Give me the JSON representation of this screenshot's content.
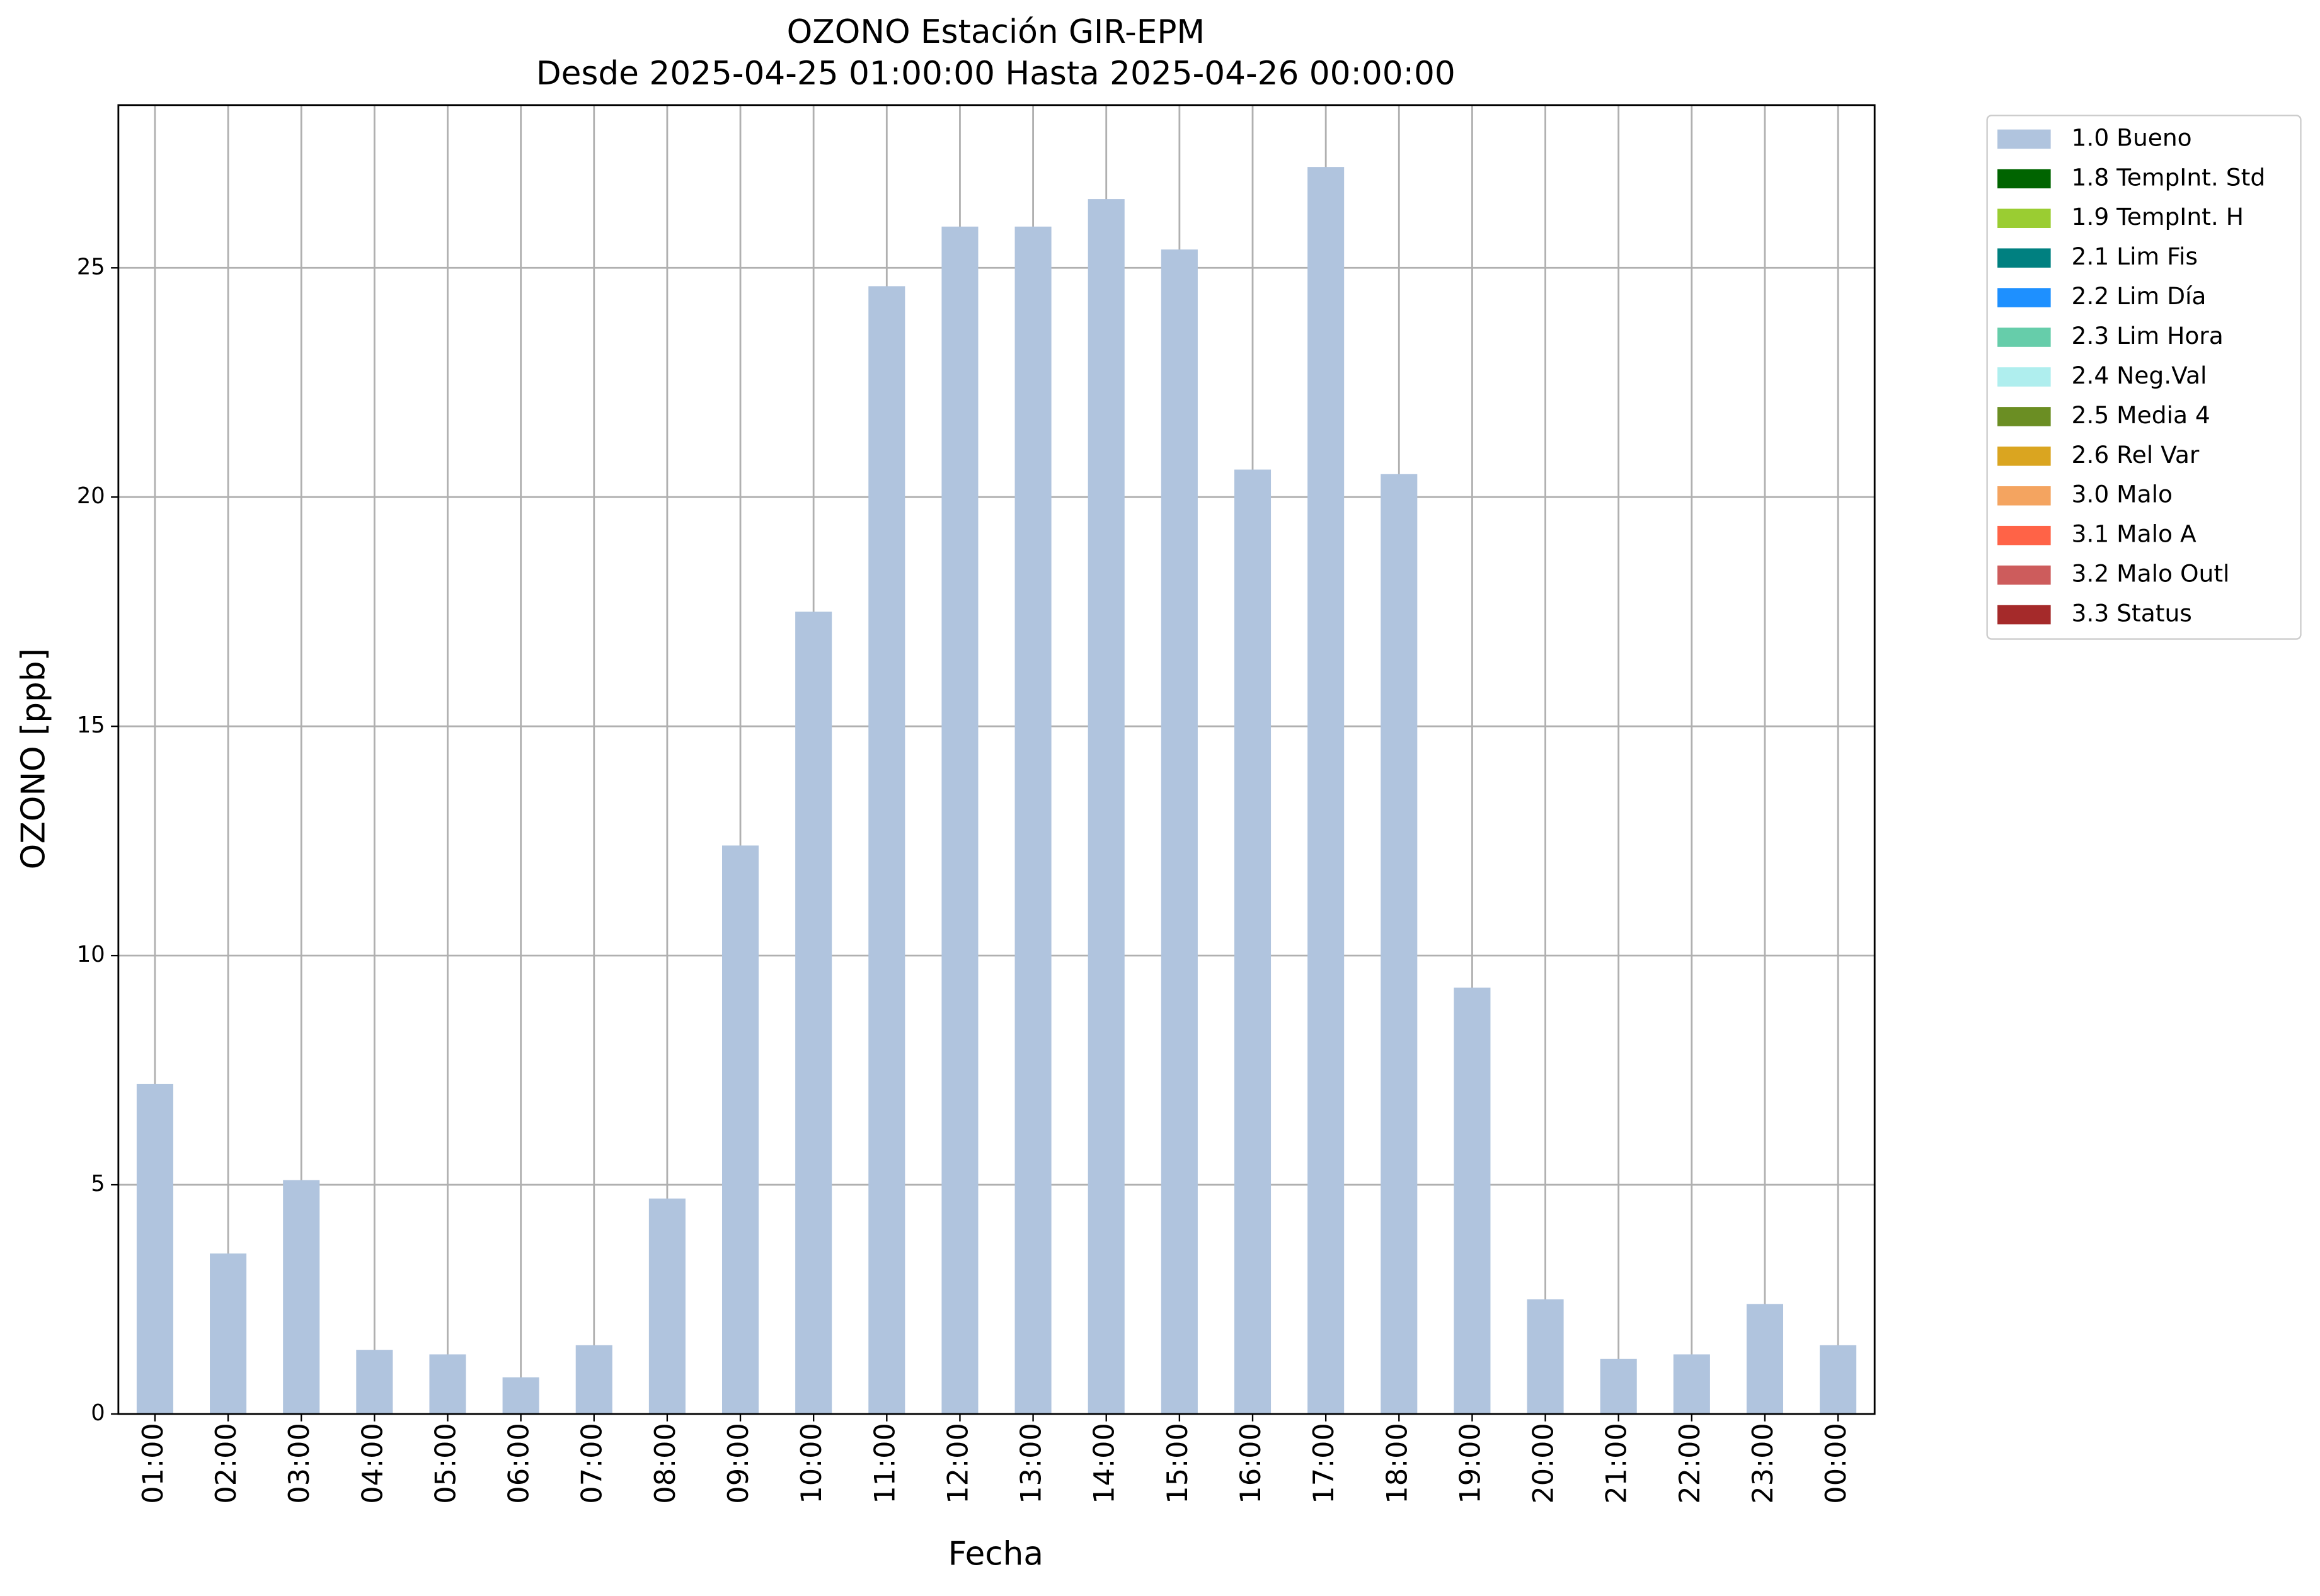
{
  "chart_data": {
    "type": "bar",
    "stacked": true,
    "title": "OZONO Estación GIR-EPM",
    "subtitle": "Desde 2025-04-25 01:00:00 Hasta 2025-04-26 00:00:00",
    "x_label": "Fecha",
    "y_label": "OZONO [ppb]",
    "categories": [
      "01:00",
      "02:00",
      "03:00",
      "04:00",
      "05:00",
      "06:00",
      "07:00",
      "08:00",
      "09:00",
      "10:00",
      "11:00",
      "12:00",
      "13:00",
      "14:00",
      "15:00",
      "16:00",
      "17:00",
      "18:00",
      "19:00",
      "20:00",
      "21:00",
      "22:00",
      "23:00",
      "00:00"
    ],
    "series": [
      {
        "name": "1.0 Bueno",
        "color": "#b0c4de",
        "values": [
          7.2,
          3.5,
          5.1,
          1.4,
          1.3,
          0.8,
          1.5,
          4.7,
          12.4,
          17.5,
          24.6,
          25.9,
          25.9,
          26.5,
          25.4,
          20.6,
          27.2,
          20.5,
          9.3,
          2.5,
          1.2,
          1.3,
          2.4,
          1.5
        ]
      },
      {
        "name": "1.8 TempInt. Std",
        "color": "#006400",
        "values": [
          0,
          0,
          0,
          0,
          0,
          0,
          0,
          0,
          0,
          0,
          0,
          0,
          0,
          0,
          0,
          0,
          0,
          0,
          0,
          0,
          0,
          0,
          0,
          0
        ]
      },
      {
        "name": "1.9 TempInt. H",
        "color": "#9acd32",
        "values": [
          0,
          0,
          0,
          0,
          0,
          0,
          0,
          0,
          0,
          0,
          0,
          0,
          0,
          0,
          0,
          0,
          0,
          0,
          0,
          0,
          0,
          0,
          0,
          0
        ]
      },
      {
        "name": "2.1 Lim Fis",
        "color": "#008080",
        "values": [
          0,
          0,
          0,
          0,
          0,
          0,
          0,
          0,
          0,
          0,
          0,
          0,
          0,
          0,
          0,
          0,
          0,
          0,
          0,
          0,
          0,
          0,
          0,
          0
        ]
      },
      {
        "name": "2.2 Lim Día",
        "color": "#1e90ff",
        "values": [
          0,
          0,
          0,
          0,
          0,
          0,
          0,
          0,
          0,
          0,
          0,
          0,
          0,
          0,
          0,
          0,
          0,
          0,
          0,
          0,
          0,
          0,
          0,
          0
        ]
      },
      {
        "name": "2.3 Lim Hora",
        "color": "#66cdaa",
        "values": [
          0,
          0,
          0,
          0,
          0,
          0,
          0,
          0,
          0,
          0,
          0,
          0,
          0,
          0,
          0,
          0,
          0,
          0,
          0,
          0,
          0,
          0,
          0,
          0
        ]
      },
      {
        "name": "2.4 Neg.Val",
        "color": "#afeeee",
        "values": [
          0,
          0,
          0,
          0,
          0,
          0,
          0,
          0,
          0,
          0,
          0,
          0,
          0,
          0,
          0,
          0,
          0,
          0,
          0,
          0,
          0,
          0,
          0,
          0
        ]
      },
      {
        "name": "2.5 Media 4",
        "color": "#6b8e23",
        "values": [
          0,
          0,
          0,
          0,
          0,
          0,
          0,
          0,
          0,
          0,
          0,
          0,
          0,
          0,
          0,
          0,
          0,
          0,
          0,
          0,
          0,
          0,
          0,
          0
        ]
      },
      {
        "name": "2.6 Rel Var",
        "color": "#daa520",
        "values": [
          0,
          0,
          0,
          0,
          0,
          0,
          0,
          0,
          0,
          0,
          0,
          0,
          0,
          0,
          0,
          0,
          0,
          0,
          0,
          0,
          0,
          0,
          0,
          0
        ]
      },
      {
        "name": "3.0 Malo",
        "color": "#f4a460",
        "values": [
          0,
          0,
          0,
          0,
          0,
          0,
          0,
          0,
          0,
          0,
          0,
          0,
          0,
          0,
          0,
          0,
          0,
          0,
          0,
          0,
          0,
          0,
          0,
          0
        ]
      },
      {
        "name": "3.1 Malo A",
        "color": "#ff6347",
        "values": [
          0,
          0,
          0,
          0,
          0,
          0,
          0,
          0,
          0,
          0,
          0,
          0,
          0,
          0,
          0,
          0,
          0,
          0,
          0,
          0,
          0,
          0,
          0,
          0
        ]
      },
      {
        "name": "3.2 Malo Outl",
        "color": "#cd5c5c",
        "values": [
          0,
          0,
          0,
          0,
          0,
          0,
          0,
          0,
          0,
          0,
          0,
          0,
          0,
          0,
          0,
          0,
          0,
          0,
          0,
          0,
          0,
          0,
          0,
          0
        ]
      },
      {
        "name": "3.3 Status",
        "color": "#a52a2a",
        "values": [
          0,
          0,
          0,
          0,
          0,
          0,
          0,
          0,
          0,
          0,
          0,
          0,
          0,
          0,
          0,
          0,
          0,
          0,
          0,
          0,
          0,
          0,
          0,
          0
        ]
      }
    ],
    "ylim": [
      0,
      28.55
    ],
    "yticks": [
      0,
      5,
      10,
      15,
      20,
      25
    ],
    "grid": true,
    "legend": "outside-upper-right"
  }
}
